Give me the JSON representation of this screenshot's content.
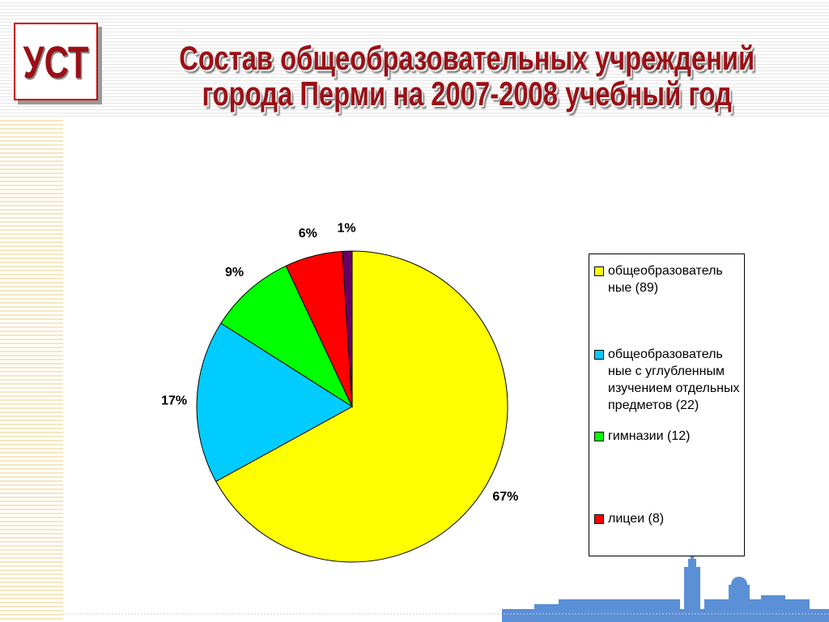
{
  "logo": "УСТ",
  "chart_data": {
    "type": "pie",
    "title": [
      "Состав общеобразовательных учреждений",
      "города Перми на 2007-2008 учебный год"
    ],
    "categories": [
      "общеобразователь ные (89)",
      "общеобразователь ные с углубленным изучением отдельных предметов (22)",
      "гимназии (12)",
      "лицеи (8)",
      null
    ],
    "values": [
      67,
      17,
      9,
      6,
      1
    ],
    "value_labels": [
      "67%",
      "17%",
      "9%",
      "6%",
      "1%"
    ],
    "colors": [
      "#ffff00",
      "#00ccff",
      "#00ff00",
      "#ff0000",
      "#660066"
    ],
    "legend": "right"
  }
}
